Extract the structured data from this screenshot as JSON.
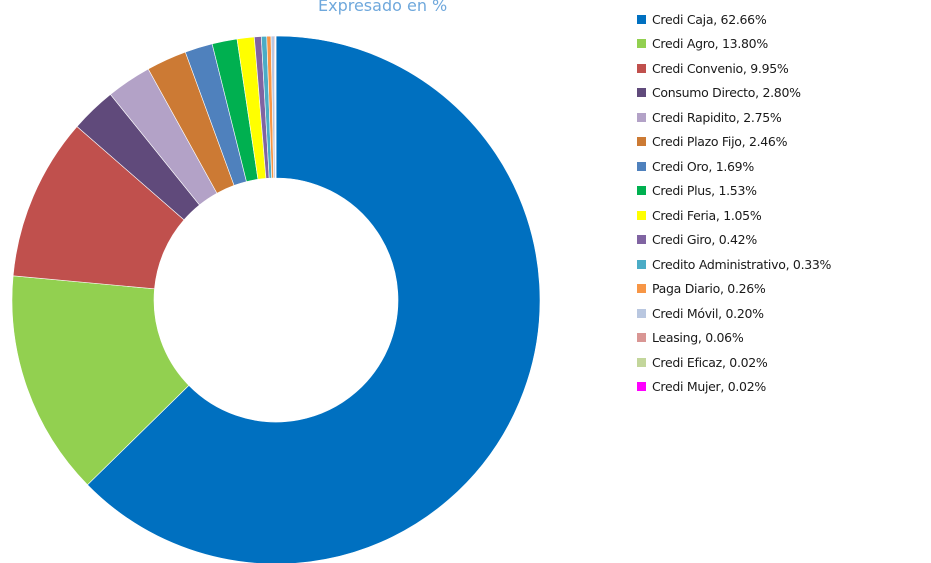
{
  "chart_data": {
    "type": "donut",
    "subtitle": "Expresado en %",
    "categories": [
      "Credi Caja",
      "Credi Agro",
      "Credi Convenio",
      "Consumo Directo",
      "Credi Rapidito",
      "Credi Plazo Fijo",
      "Credi Oro",
      "Credi Plus",
      "Credi Feria",
      "Credi Giro",
      "Credito Administrativo",
      "Paga Diario",
      "Credi Móvil",
      "Leasing",
      "Credi Eficaz",
      "Credi Mujer"
    ],
    "values": [
      62.66,
      13.8,
      9.95,
      2.8,
      2.75,
      2.46,
      1.69,
      1.53,
      1.05,
      0.42,
      0.33,
      0.26,
      0.2,
      0.06,
      0.02,
      0.02
    ],
    "value_labels": [
      "62.66%",
      "13.80%",
      "9.95%",
      "2.80%",
      "2.75%",
      "2.46%",
      "1.69%",
      "1.53%",
      "1.05%",
      "0.42%",
      "0.33%",
      "0.26%",
      "0.20%",
      "0.06%",
      "0.02%",
      "0.02%"
    ],
    "colors": [
      "#0070c0",
      "#92d050",
      "#c0504d",
      "#604a7b",
      "#b3a2c7",
      "#cc7a34",
      "#4f81bd",
      "#00b050",
      "#ffff00",
      "#8064a2",
      "#4bacc6",
      "#f79646",
      "#b9c7e0",
      "#d99694",
      "#c3d69b",
      "#ff00ff"
    ]
  }
}
